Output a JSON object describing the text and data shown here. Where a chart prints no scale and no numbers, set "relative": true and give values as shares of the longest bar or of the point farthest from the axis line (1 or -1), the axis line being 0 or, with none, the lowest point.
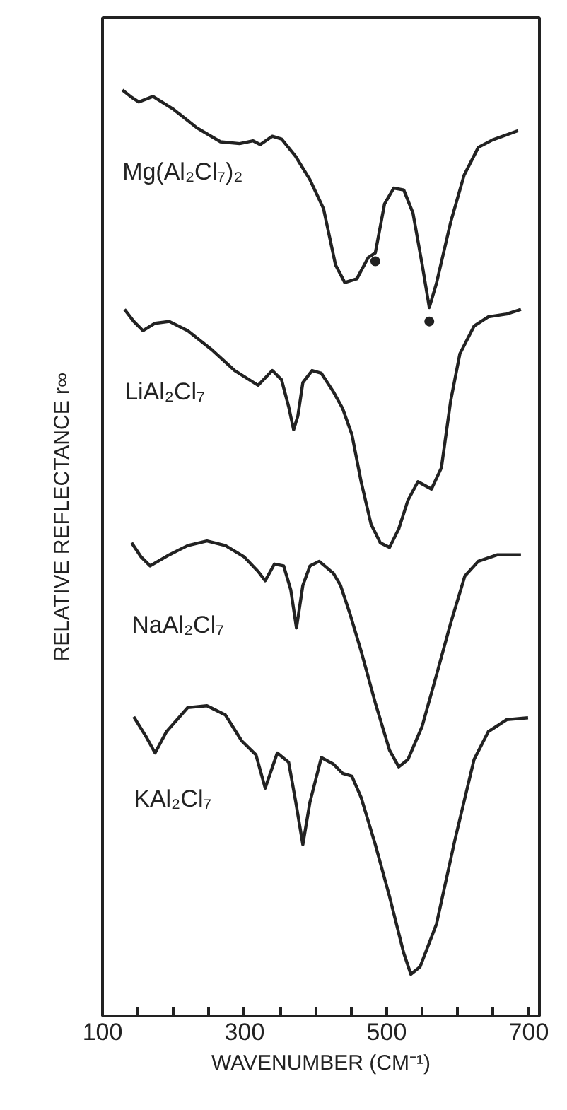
{
  "chart_data": {
    "type": "line",
    "relative": true,
    "xlabel": "WAVENUMBER (CM⁻¹)",
    "ylabel": "RELATIVE REFLECTANCE r∞",
    "xlim": [
      100,
      715
    ],
    "xticks": [
      100,
      {
        "value": 150,
        "label": null
      },
      {
        "value": 200,
        "label": null
      },
      {
        "value": 250,
        "label": null
      },
      300,
      {
        "value": 350,
        "label": null
      },
      {
        "value": 400,
        "label": null
      },
      {
        "value": 450,
        "label": null
      },
      500,
      {
        "value": 550,
        "label": null
      },
      {
        "value": 600,
        "label": null
      },
      {
        "value": 650,
        "label": null
      },
      700
    ],
    "tick_labels": "x",
    "grid": false,
    "line_style": "solid",
    "marker": "none",
    "series": [
      {
        "name": "Mg(Al₂Cl₇)₂",
        "color": "#222222",
        "x": [
          128,
          141,
          151,
          171,
          200,
          233,
          266,
          293,
          312,
          322,
          339,
          352,
          372,
          392,
          411,
          428,
          441,
          458,
          474,
          484,
          497,
          510,
          524,
          537,
          550,
          560,
          570,
          590,
          609,
          629,
          649,
          685
        ],
        "values": [
          1.0,
          0.992,
          0.987,
          0.993,
          0.979,
          0.959,
          0.944,
          0.942,
          0.945,
          0.941,
          0.95,
          0.947,
          0.928,
          0.903,
          0.872,
          0.811,
          0.792,
          0.796,
          0.819,
          0.824,
          0.877,
          0.894,
          0.892,
          0.867,
          0.811,
          0.765,
          0.791,
          0.857,
          0.908,
          0.938,
          0.946,
          0.956
        ]
      },
      {
        "type": "scatter",
        "color": "#222222",
        "marker": "circle",
        "x": [
          484,
          560
        ],
        "values": [
          0.815,
          0.75
        ]
      },
      {
        "name": "LiAl₂Cl₇",
        "color": "#222222",
        "x": [
          131,
          144,
          157,
          174,
          194,
          220,
          253,
          286,
          319,
          329,
          339,
          352,
          362,
          369,
          375,
          382,
          395,
          408,
          425,
          438,
          451,
          464,
          478,
          491,
          504,
          517,
          530,
          544,
          563,
          577,
          590,
          603,
          623,
          643,
          669,
          689
        ],
        "values": [
          0.763,
          0.75,
          0.74,
          0.748,
          0.75,
          0.74,
          0.72,
          0.697,
          0.681,
          0.689,
          0.697,
          0.687,
          0.658,
          0.633,
          0.648,
          0.684,
          0.697,
          0.694,
          0.674,
          0.656,
          0.628,
          0.577,
          0.531,
          0.511,
          0.506,
          0.526,
          0.557,
          0.577,
          0.569,
          0.592,
          0.664,
          0.715,
          0.745,
          0.755,
          0.758,
          0.763
        ]
      },
      {
        "name": "NaAl₂Cl₇",
        "color": "#222222",
        "x": [
          141,
          154,
          167,
          194,
          220,
          247,
          273,
          299,
          319,
          329,
          342,
          355,
          365,
          373,
          382,
          392,
          405,
          425,
          435,
          448,
          464,
          484,
          504,
          517,
          530,
          550,
          570,
          590,
          610,
          629,
          656,
          689
        ],
        "values": [
          0.511,
          0.496,
          0.486,
          0.498,
          0.508,
          0.513,
          0.508,
          0.496,
          0.48,
          0.47,
          0.488,
          0.486,
          0.46,
          0.419,
          0.465,
          0.486,
          0.491,
          0.478,
          0.465,
          0.435,
          0.394,
          0.338,
          0.287,
          0.269,
          0.277,
          0.313,
          0.368,
          0.424,
          0.475,
          0.491,
          0.498,
          0.498
        ]
      },
      {
        "name": "KAl₂Cl₇",
        "color": "#222222",
        "x": [
          144,
          161,
          174,
          190,
          220,
          247,
          273,
          296,
          316,
          329,
          346,
          362,
          372,
          382,
          392,
          408,
          425,
          438,
          451,
          464,
          484,
          504,
          524,
          534,
          547,
          570,
          596,
          623,
          643,
          669,
          699
        ],
        "values": [
          0.323,
          0.302,
          0.284,
          0.307,
          0.333,
          0.335,
          0.325,
          0.297,
          0.282,
          0.246,
          0.284,
          0.274,
          0.231,
          0.185,
          0.231,
          0.279,
          0.272,
          0.262,
          0.259,
          0.236,
          0.185,
          0.129,
          0.068,
          0.045,
          0.053,
          0.099,
          0.19,
          0.277,
          0.307,
          0.32,
          0.322
        ]
      }
    ]
  }
}
